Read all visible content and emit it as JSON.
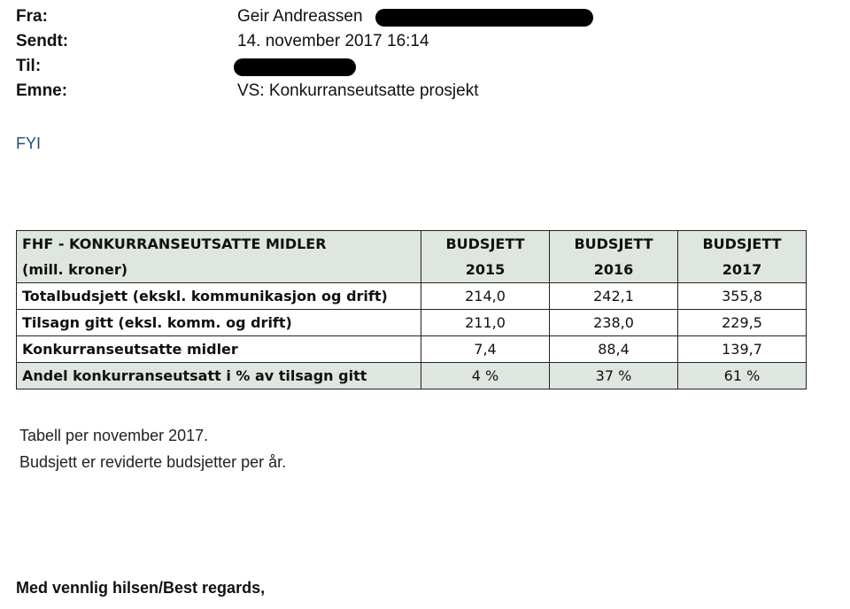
{
  "email": {
    "from_label": "Fra:",
    "from_value": "Geir Andreassen",
    "sent_label": "Sendt:",
    "sent_value": "14. november 2017 16:14",
    "to_label": "Til:",
    "subject_label": "Emne:",
    "subject_value": "VS: Konkurranseutsatte prosjekt"
  },
  "body": {
    "fyi": "FYI",
    "note_line1": "Tabell per november 2017.",
    "note_line2": "Budsjett er reviderte budsjetter per år.",
    "signoff": "Med vennlig hilsen/Best regards,"
  },
  "table": {
    "title_line1": "FHF - KONKURRANSEUTSATTE MIDLER",
    "title_line2": "(mill. kroner)",
    "columns": [
      {
        "line1": "BUDSJETT",
        "line2": "2015"
      },
      {
        "line1": "BUDSJETT",
        "line2": "2016"
      },
      {
        "line1": "BUDSJETT",
        "line2": "2017"
      }
    ],
    "rows": [
      {
        "label": "Totalbudsjett (ekskl. kommunikasjon og drift)",
        "values": [
          "214,0",
          "242,1",
          "355,8"
        ]
      },
      {
        "label": "Tilsagn gitt (eksl. komm. og drift)",
        "values": [
          "211,0",
          "238,0",
          "229,5"
        ]
      },
      {
        "label": "Konkurranseutsatte midler",
        "values": [
          "7,4",
          "88,4",
          "139,7"
        ]
      },
      {
        "label": "Andel konkurranseutsatt i % av tilsagn gitt",
        "values": [
          "4 %",
          "37 %",
          "61 %"
        ]
      }
    ]
  }
}
